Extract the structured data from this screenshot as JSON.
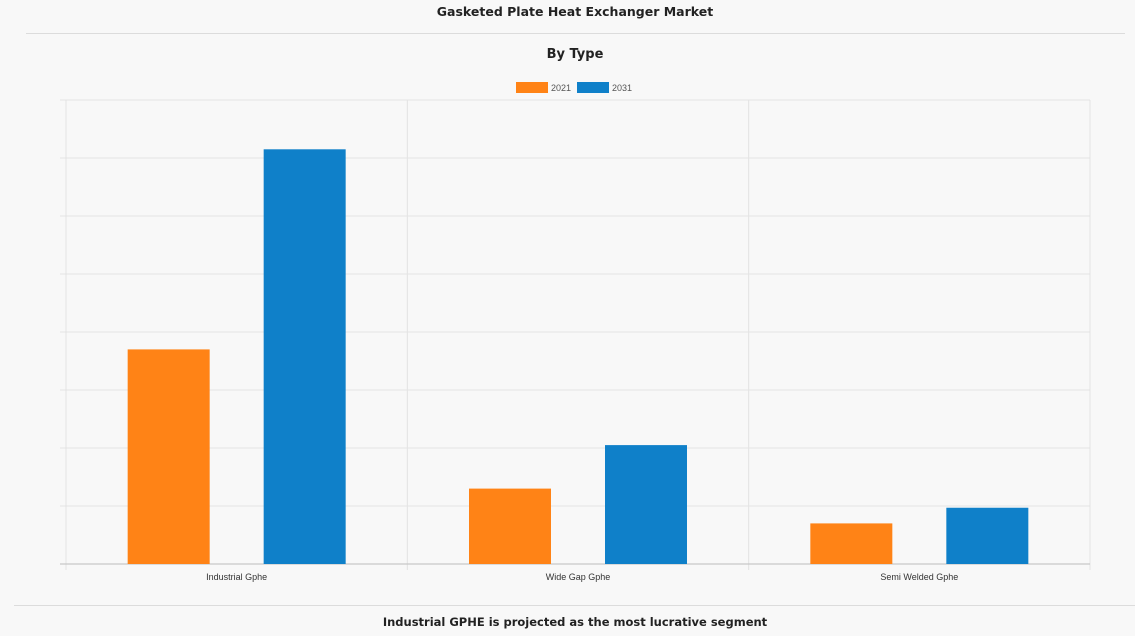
{
  "header": {
    "title": "Gasketed Plate Heat Exchanger Market",
    "subtitle": "By Type"
  },
  "footer": {
    "caption": "Industrial GPHE is projected as the most lucrative segment"
  },
  "colors": {
    "series_2021": "#ff8316",
    "series_2031": "#0f80c9",
    "grid": "#e3e3e3",
    "axis": "#c8c8c8"
  },
  "chart_data": {
    "type": "bar",
    "title": "By Type",
    "categories": [
      "Industrial Gphe",
      "Wide Gap Gphe",
      "Semi Welded Gphe"
    ],
    "series": [
      {
        "name": "2021",
        "values": [
          3.7,
          1.3,
          0.7
        ]
      },
      {
        "name": "2031",
        "values": [
          7.15,
          2.05,
          0.97
        ]
      }
    ],
    "ylim": [
      0,
      8
    ],
    "grid": true,
    "legend_position": "top-center",
    "xlabel": "",
    "ylabel": ""
  }
}
